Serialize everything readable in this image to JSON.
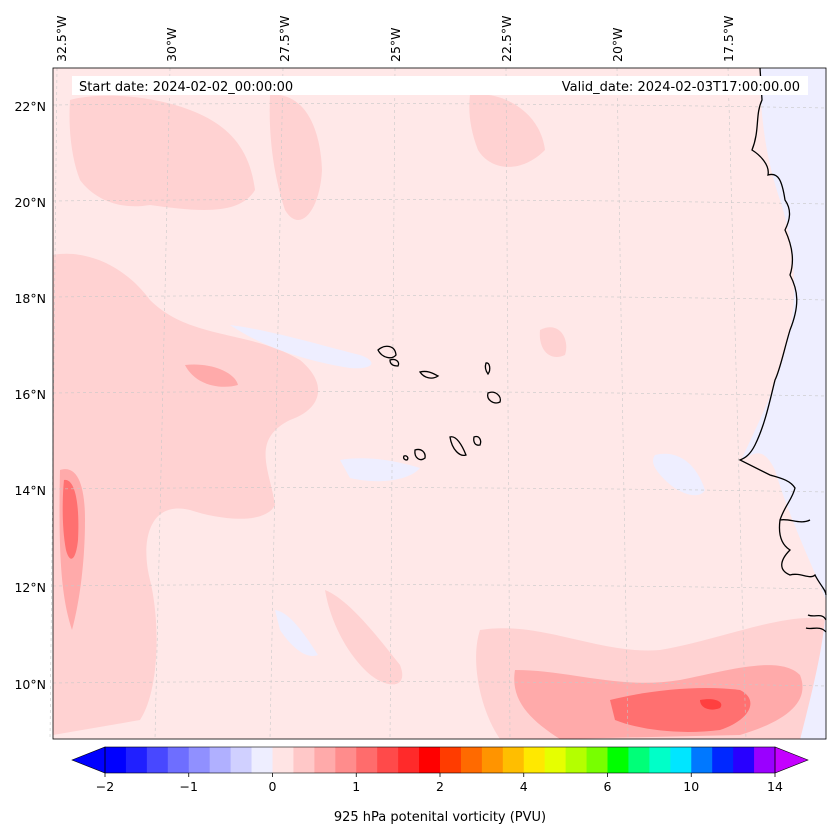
{
  "header": {
    "start_date": "Start date: 2024-02-02_00:00:00",
    "valid_date": "Valid_date: 2024-02-03T17:00:00.00"
  },
  "lon_ticks": [
    "32.5°W",
    "30°W",
    "27.5°W",
    "25°W",
    "22.5°W",
    "20°W",
    "17.5°W"
  ],
  "lat_ticks": [
    "22°N",
    "20°N",
    "18°N",
    "16°N",
    "14°N",
    "12°N",
    "10°N"
  ],
  "colorbar": {
    "label": "925 hPa potenital vorticity (PVU)",
    "tick_labels": [
      "−2",
      "−1",
      "0",
      "1",
      "2",
      "4",
      "6",
      "10",
      "14"
    ],
    "colors": [
      "#0000ff",
      "#2020ff",
      "#4848ff",
      "#6e6eff",
      "#9090ff",
      "#b0b0ff",
      "#d0d0ff",
      "#eeeeff",
      "#ffe4e4",
      "#ffc8c8",
      "#ffaaaa",
      "#ff8c8c",
      "#ff6c6c",
      "#ff4a4a",
      "#ff2a2a",
      "#ff0000",
      "#ff3c00",
      "#ff6a00",
      "#ff9400",
      "#ffbe00",
      "#ffe800",
      "#e6ff00",
      "#b4ff00",
      "#78ff00",
      "#00ff00",
      "#00ff78",
      "#00ffc8",
      "#00e6ff",
      "#0078ff",
      "#0028ff",
      "#2800ff",
      "#9a00ff"
    ],
    "under_color": "#0000ff",
    "over_color": "#c400ff"
  },
  "colors": {
    "background_field": "#ffe8e8",
    "positive_light": "#ffd2d2",
    "positive_mid": "#ffaaaa",
    "positive_strong": "#ff7070",
    "positive_peak": "#ff4040",
    "negative_light": "#eeeeff",
    "coast": "#000000"
  }
}
